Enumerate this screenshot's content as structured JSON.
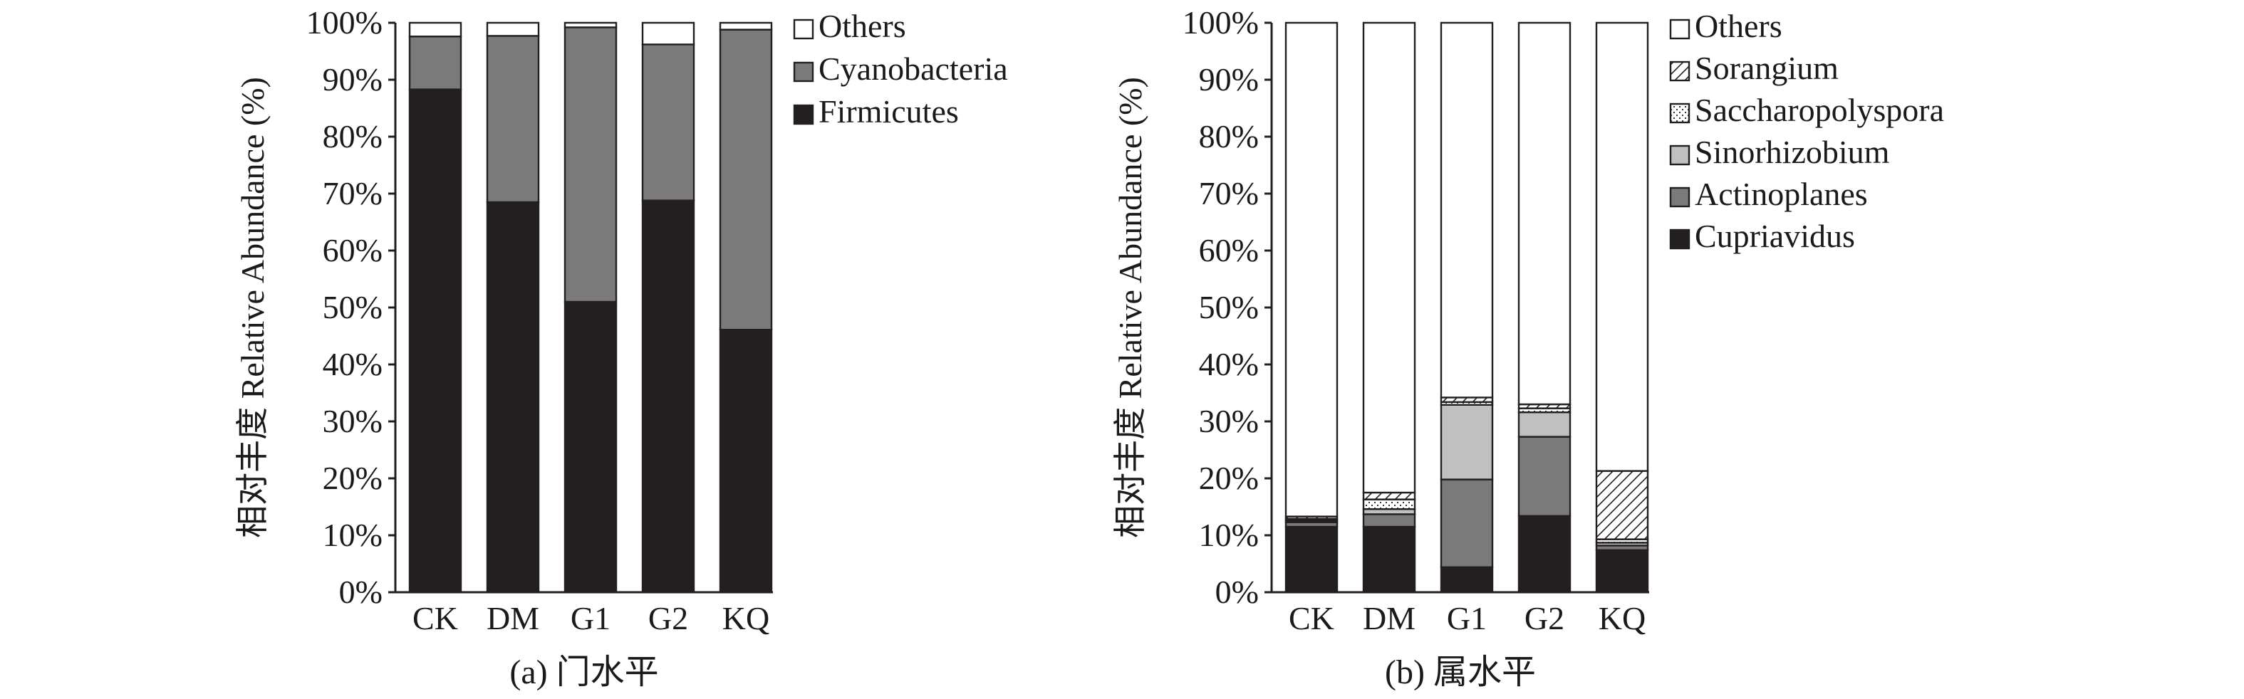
{
  "chart_data": [
    {
      "type": "bar",
      "stacked": true,
      "caption": "(a) 门水平",
      "ylabel": "相对丰度 Relative Abundance (%)",
      "ylim": [
        0,
        100
      ],
      "yticks": [
        "0%",
        "10%",
        "20%",
        "30%",
        "40%",
        "50%",
        "60%",
        "70%",
        "80%",
        "90%",
        "100%"
      ],
      "categories": [
        "CK",
        "DM",
        "G1",
        "G2",
        "KQ"
      ],
      "legend_position": "right",
      "series": [
        {
          "name": "Firmicutes",
          "color": "#231f20",
          "pattern": "solid",
          "values": [
            88.3,
            68.5,
            51.0,
            68.8,
            46.1
          ]
        },
        {
          "name": "Cyanobacteria",
          "color": "#7a7a7a",
          "pattern": "solid",
          "values": [
            9.3,
            29.2,
            48.2,
            27.4,
            52.7
          ]
        },
        {
          "name": "Others",
          "color": "#ffffff",
          "pattern": "solid",
          "values": [
            2.4,
            2.3,
            0.8,
            3.8,
            1.2
          ]
        }
      ],
      "legend_order": [
        "Others",
        "Cyanobacteria",
        "Firmicutes"
      ]
    },
    {
      "type": "bar",
      "stacked": true,
      "caption": "(b) 属水平",
      "ylabel": "相对丰度 Relative Abundance (%)",
      "ylim": [
        0,
        100
      ],
      "yticks": [
        "0%",
        "10%",
        "20%",
        "30%",
        "40%",
        "50%",
        "60%",
        "70%",
        "80%",
        "90%",
        "100%"
      ],
      "categories": [
        "CK",
        "DM",
        "G1",
        "G2",
        "KQ"
      ],
      "legend_position": "right",
      "series": [
        {
          "name": "Cupriavidus",
          "color": "#231f20",
          "pattern": "solid",
          "values": [
            11.5,
            11.5,
            4.4,
            13.4,
            7.4
          ]
        },
        {
          "name": "Actinoplanes",
          "color": "#7a7a7a",
          "pattern": "solid",
          "values": [
            0.8,
            2.2,
            15.4,
            13.9,
            0.8
          ]
        },
        {
          "name": "Sinorhizobium",
          "color": "#c0c0c0",
          "pattern": "solid",
          "values": [
            0.3,
            0.9,
            13.1,
            4.3,
            0.5
          ]
        },
        {
          "name": "Saccharopolyspora",
          "color": "#ffffff",
          "pattern": "dotted",
          "values": [
            0.3,
            1.7,
            0.5,
            0.7,
            0.6
          ]
        },
        {
          "name": "Sorangium",
          "color": "#ffffff",
          "pattern": "hatch",
          "values": [
            0.4,
            1.2,
            0.8,
            0.7,
            12.0
          ]
        },
        {
          "name": "Others",
          "color": "#ffffff",
          "pattern": "solid",
          "values": [
            86.7,
            82.5,
            65.8,
            67.0,
            78.7
          ]
        }
      ],
      "legend_order": [
        "Others",
        "Sorangium",
        "Saccharopolyspora",
        "Sinorhizobium",
        "Actinoplanes",
        "Cupriavidus"
      ]
    }
  ]
}
